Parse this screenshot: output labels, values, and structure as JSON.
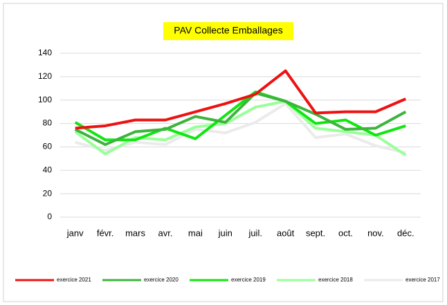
{
  "chart_data": {
    "type": "line",
    "title": "PAV Collecte Emballages",
    "categories": [
      "janv",
      "févr.",
      "mars",
      "avr.",
      "mai",
      "juin",
      "juil.",
      "août",
      "sept.",
      "oct.",
      "nov.",
      "déc."
    ],
    "series": [
      {
        "name": "exercice 2021",
        "color": "#ee1111",
        "values": [
          76,
          78,
          83,
          83,
          90,
          97,
          105,
          125,
          89,
          90,
          90,
          101
        ]
      },
      {
        "name": "exercice 2020",
        "color": "#3cb43c",
        "values": [
          75,
          62,
          73,
          75,
          86,
          81,
          106,
          99,
          88,
          75,
          76,
          90
        ]
      },
      {
        "name": "exercice 2019",
        "color": "#11e611",
        "values": [
          81,
          66,
          66,
          76,
          67,
          87,
          107,
          99,
          80,
          83,
          70,
          78
        ]
      },
      {
        "name": "exercice 2018",
        "color": "#99ff99",
        "values": [
          73,
          54,
          68,
          66,
          77,
          80,
          94,
          99,
          76,
          73,
          70,
          53
        ]
      },
      {
        "name": "exercice 2017",
        "color": "#ebebeb",
        "values": [
          64,
          57,
          64,
          62,
          75,
          72,
          81,
          97,
          68,
          71,
          61,
          55
        ]
      }
    ],
    "ylim": [
      0,
      140
    ],
    "yticks": [
      0,
      20,
      40,
      60,
      80,
      100,
      120,
      140
    ],
    "grid": true,
    "legend": "bottom"
  }
}
